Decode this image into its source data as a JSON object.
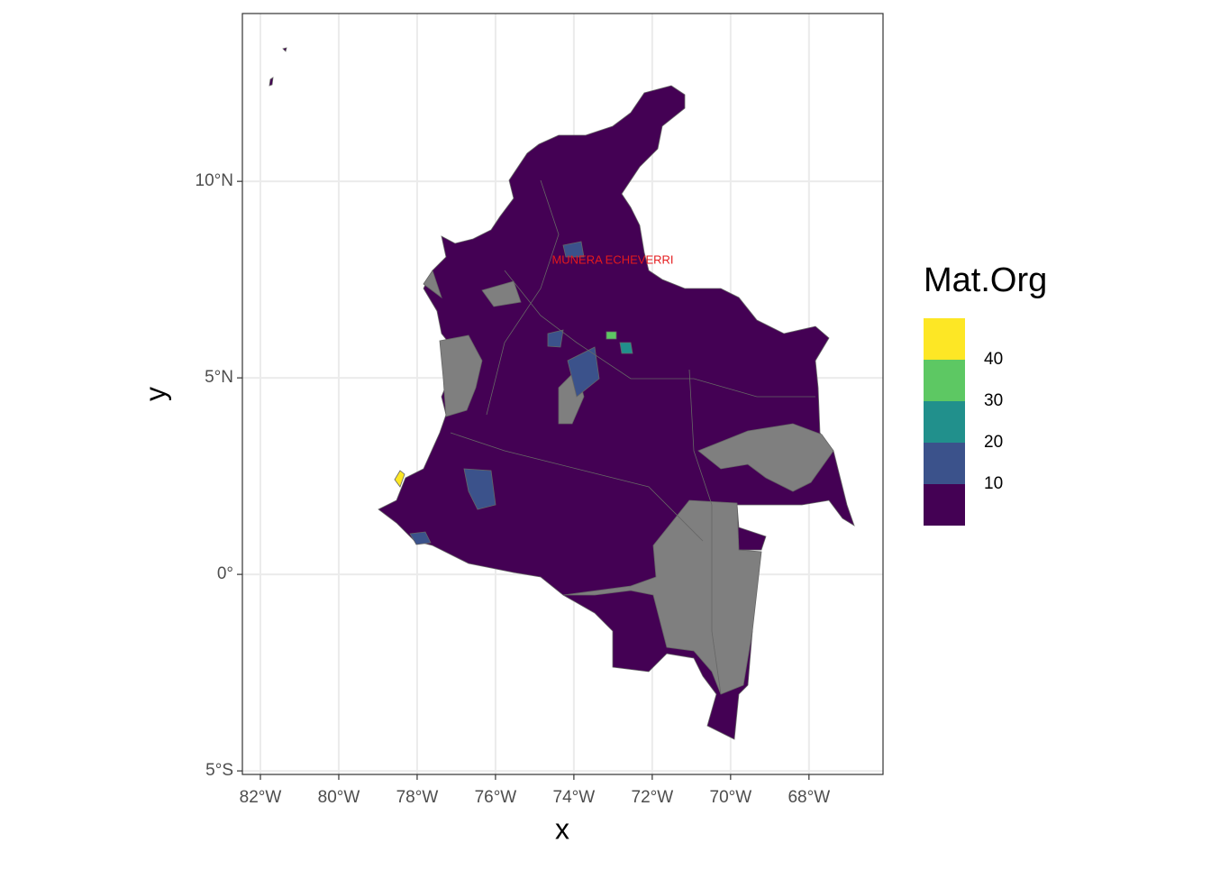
{
  "chart_data": {
    "type": "map",
    "x_label": "x",
    "y_label": "y",
    "xlim": [
      -82.46,
      -66.11
    ],
    "ylim": [
      -5.09,
      14.27
    ],
    "xticks": [
      {
        "value": -82,
        "label": "82°W"
      },
      {
        "value": -80,
        "label": "80°W"
      },
      {
        "value": -78,
        "label": "78°W"
      },
      {
        "value": -76,
        "label": "76°W"
      },
      {
        "value": -74,
        "label": "74°W"
      },
      {
        "value": -72,
        "label": "72°W"
      },
      {
        "value": -70,
        "label": "70°W"
      },
      {
        "value": -68,
        "label": "68°W"
      }
    ],
    "yticks": [
      {
        "value": -5,
        "label": "5°S"
      },
      {
        "value": 0,
        "label": "0°"
      },
      {
        "value": 5,
        "label": "5°N"
      },
      {
        "value": 10,
        "label": "10°N"
      }
    ],
    "grid": true,
    "legend": {
      "title": "Mat.Org",
      "breaks": [
        10,
        20,
        30,
        40
      ],
      "colors": [
        "#440154",
        "#3b528b",
        "#21908c",
        "#5dc863",
        "#fde725"
      ]
    },
    "annotations": [
      "MUNERA ECHEVERRI"
    ]
  }
}
